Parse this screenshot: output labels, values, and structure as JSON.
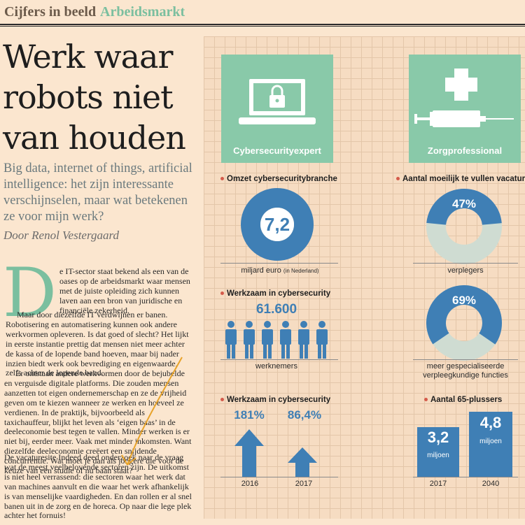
{
  "header": {
    "section": "Cijfers in beeld",
    "topic": "Arbeidsmarkt"
  },
  "headline": [
    "Werk waar",
    "robots niet",
    "van houden"
  ],
  "intro": "Big data, internet of things, artificial intelligence: het zijn interessante verschijnselen, maar wat betekenen ze voor mijn werk?",
  "byline": "Door Renol Vestergaard",
  "body": {
    "dropcap": "D",
    "p1": "e IT-sector staat bekend als een van de oases op de arbeidsmarkt waar mensen met de juiste opleiding zich kunnen laven aan een bron van juridische en financiële zekerheid.",
    "p1b": "Maar door diezelfde IT verdwijnen er banen. Robotisering en automatisering kunnen ook andere werkvormen opleveren. Is dat goed of slecht? Het lijkt in eerste instantie prettig dat mensen niet meer achter de kassa of de lopende band hoeven, maar bij nader inzien biedt werk ook bevrediging en eigenwaarde, zelfs achter de lopende band.",
    "p2": "Er ontstaan andere werkvormen door de bejubelde en verguisde digitale platforms. Die zouden mensen aanzetten tot eigen ondernemerschap en ze de vrijheid geven om te kiezen wanneer ze werken en hoeveel ze verdienen. In de praktijk, bijvoorbeeld als taxichauffeur, blijkt het leven als ‘eigen baas’ in de deeleconomie best tegen te vallen. Minder werken is er niet bij, eerder meer. Vaak met minder inkomsten. Want diezelfde deeleconomie creëert een snijdende concurrentie. Wat moet je dan als jongere die voor de keuze van een studie of nu baan staat?",
    "p3": "De vacaturesite Indeed deed onderzoek naar de vraag wat de meest veelbelovende sectoren zijn. De uitkomst is niet heel verrassend: die sectoren waar het werk dat van machines aanvult en die waar het werk afhankelijk is van menselijke vaardigheden. En dan rollen er al snel banen uit in de zorg en de horeca. Op naar die lege plek achter het fornuis!"
  },
  "left_card": {
    "title": "Cybersecurityexpert",
    "icon": "laptop-lock-icon"
  },
  "right_card": {
    "title": "Zorgprofessional",
    "icon": "syringe-icon"
  },
  "omzet": {
    "title": "Omzet cybersecuritybranche",
    "value": "7,2",
    "label": "miljard euro",
    "note": "(in Nederland)"
  },
  "werkzaam1": {
    "title": "Werkzaam in cybersecurity",
    "value": "61.600",
    "label": "werknemers"
  },
  "werkzaam2": {
    "title": "Werkzaam in cybersecurity",
    "items": [
      {
        "pct": "181%",
        "year": "2016"
      },
      {
        "pct": "86,4%",
        "year": "2017"
      }
    ]
  },
  "vacatures": {
    "title": "Aantal moeilijk te vullen vacatures",
    "items": [
      {
        "pct": "47%",
        "label": "verplegers",
        "fraction": 0.47
      },
      {
        "pct": "69%",
        "label1": "meer gespecialiseerde",
        "label2": "verpleegkundige functies",
        "fraction": 0.69
      }
    ]
  },
  "plussers": {
    "title": "Aantal 65-plussers",
    "items": [
      {
        "value": "3,2",
        "unit": "miljoen",
        "year": "2017"
      },
      {
        "value": "4,8",
        "unit": "miljoen",
        "year": "2040"
      }
    ]
  },
  "colors": {
    "accent_green": "#89c9a9",
    "blue": "#3f7fb5",
    "light": "#cfdcd2",
    "dot": "#d45a4a"
  }
}
